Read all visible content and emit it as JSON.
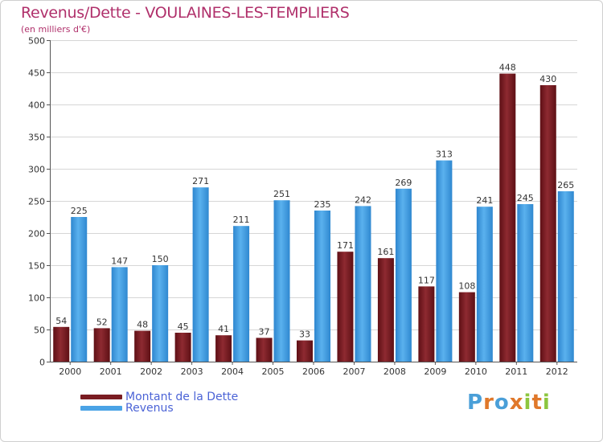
{
  "title": "Revenus/Dette - VOULAINES-LES-TEMPLIERS",
  "subtitle": "(en milliers d'€)",
  "legend": [
    {
      "label": "Montant de la Dette",
      "color": "#7a1c22"
    },
    {
      "label": "Revenus",
      "color": "#4aa3e6"
    }
  ],
  "logo": {
    "text": "Proxiti",
    "letters": [
      "P",
      "r",
      "o",
      "x",
      "i",
      "t",
      "i"
    ],
    "colors": [
      "#4a9fd8",
      "#e0782a",
      "#4a9fd8",
      "#e0782a",
      "#8dc63f",
      "#e0782a",
      "#8dc63f"
    ]
  },
  "chart_data": {
    "type": "bar",
    "title": "Revenus/Dette - VOULAINES-LES-TEMPLIERS",
    "ylabel": "(en milliers d'€)",
    "xlabel": "",
    "ylim": [
      0,
      500
    ],
    "yticks": [
      0,
      50,
      100,
      150,
      200,
      250,
      300,
      350,
      400,
      450,
      500
    ],
    "grid": true,
    "categories": [
      "2000",
      "2001",
      "2002",
      "2003",
      "2004",
      "2005",
      "2006",
      "2007",
      "2008",
      "2009",
      "2010",
      "2011",
      "2012"
    ],
    "series": [
      {
        "name": "Montant de la Dette",
        "color": "#7a1c22",
        "values": [
          54,
          52,
          48,
          45,
          41,
          37,
          33,
          171,
          161,
          117,
          108,
          448,
          430
        ]
      },
      {
        "name": "Revenus",
        "color": "#4aa3e6",
        "values": [
          225,
          147,
          150,
          271,
          211,
          251,
          235,
          242,
          269,
          313,
          241,
          245,
          265
        ]
      }
    ]
  }
}
